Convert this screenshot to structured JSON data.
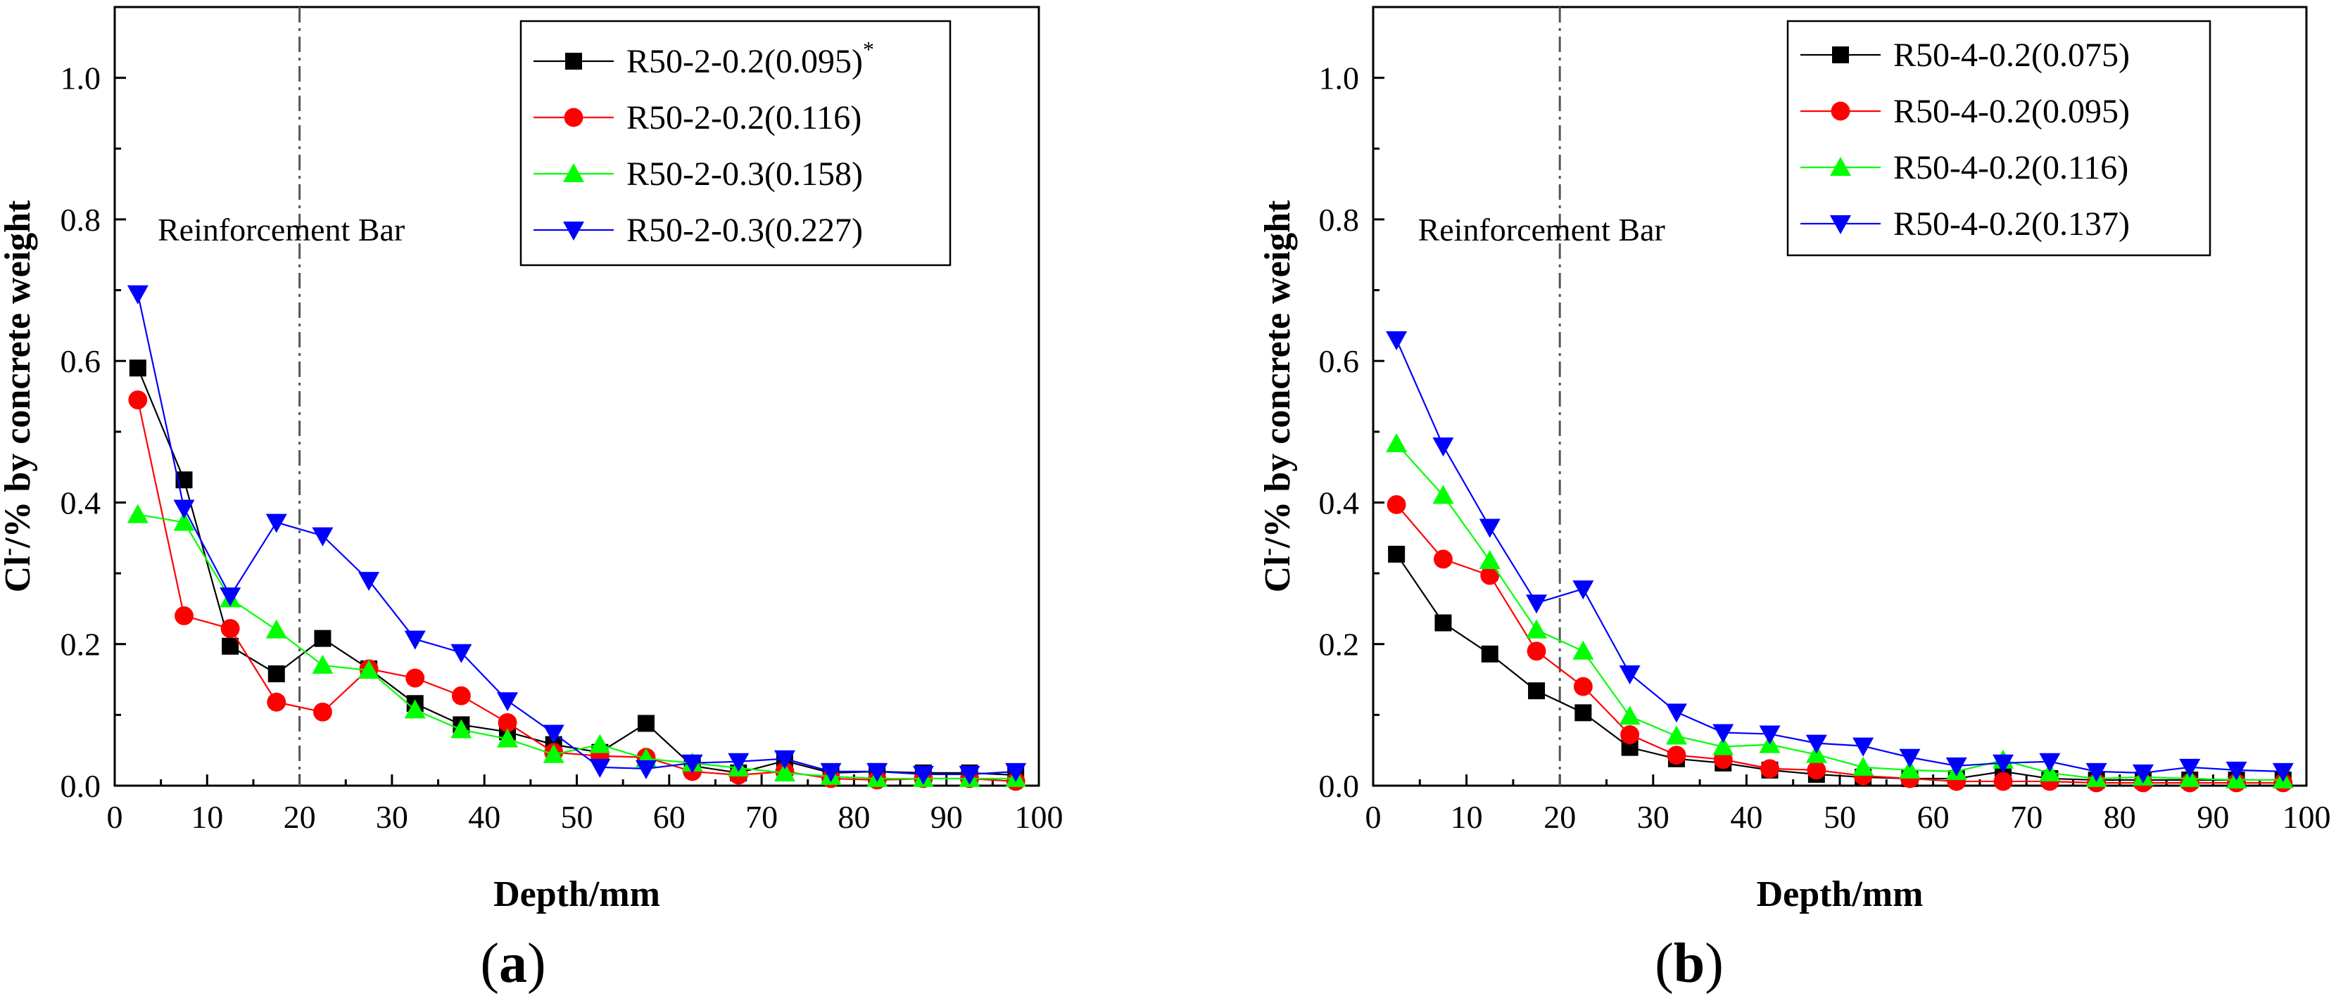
{
  "chart_data": [
    {
      "type": "line",
      "panel_label": "a",
      "xlabel": "Depth/mm",
      "ylabel_main": "Cl",
      "ylabel_sup": "-",
      "ylabel_rest": "/% by concrete weight",
      "xlim": [
        0,
        100
      ],
      "ylim": [
        0,
        1.1
      ],
      "xticks": [
        "0",
        "10",
        "20",
        "30",
        "40",
        "50",
        "60",
        "70",
        "80",
        "90",
        "100"
      ],
      "yticks": [
        "0.0",
        "0.2",
        "0.4",
        "0.6",
        "0.8",
        "1.0"
      ],
      "annotation": {
        "text": "Reinforcement Bar",
        "x": 20
      },
      "legend_position": "top-right",
      "x": [
        2.5,
        7.5,
        12.5,
        17.5,
        22.5,
        27.5,
        32.5,
        37.5,
        42.5,
        47.5,
        52.5,
        57.5,
        62.5,
        67.5,
        72.5,
        77.5,
        82.5,
        87.5,
        92.5,
        97.5
      ],
      "series": [
        {
          "name": "R50-2-0.2(0.095)",
          "superscript": "*",
          "color": "#000000",
          "marker": "square",
          "values": [
            0.59,
            0.432,
            0.197,
            0.158,
            0.208,
            0.165,
            0.116,
            0.086,
            0.076,
            0.058,
            0.047,
            0.088,
            0.028,
            0.018,
            0.035,
            0.018,
            0.02,
            0.018,
            0.018,
            0.015
          ]
        },
        {
          "name": "R50-2-0.2(0.116)",
          "color": "#ff0000",
          "marker": "circle",
          "values": [
            0.545,
            0.24,
            0.222,
            0.118,
            0.104,
            0.165,
            0.152,
            0.127,
            0.089,
            0.047,
            0.042,
            0.04,
            0.02,
            0.015,
            0.02,
            0.01,
            0.008,
            0.01,
            0.01,
            0.006
          ]
        },
        {
          "name": "R50-2-0.3(0.158)",
          "color": "#00ff00",
          "marker": "triangle-up",
          "values": [
            0.383,
            0.372,
            0.264,
            0.22,
            0.17,
            0.163,
            0.107,
            0.079,
            0.066,
            0.044,
            0.058,
            0.038,
            0.032,
            0.025,
            0.018,
            0.013,
            0.01,
            0.01,
            0.01,
            0.01
          ]
        },
        {
          "name": "R50-2-0.3(0.227)",
          "color": "#0000ff",
          "marker": "triangle-down",
          "values": [
            0.695,
            0.392,
            0.268,
            0.372,
            0.353,
            0.29,
            0.207,
            0.188,
            0.12,
            0.074,
            0.026,
            0.024,
            0.032,
            0.034,
            0.038,
            0.02,
            0.02,
            0.016,
            0.016,
            0.02
          ]
        }
      ]
    },
    {
      "type": "line",
      "panel_label": "b",
      "xlabel": "Depth/mm",
      "ylabel_main": "Cl",
      "ylabel_sup": "-",
      "ylabel_rest": "/% by concrete weight",
      "xlim": [
        0,
        100
      ],
      "ylim": [
        0,
        1.1
      ],
      "xticks": [
        "0",
        "10",
        "20",
        "30",
        "40",
        "50",
        "60",
        "70",
        "80",
        "90",
        "100"
      ],
      "yticks": [
        "0.0",
        "0.2",
        "0.4",
        "0.6",
        "0.8",
        "1.0"
      ],
      "annotation": {
        "text": "Reinforcement Bar",
        "x": 20
      },
      "legend_position": "top-right",
      "x": [
        2.5,
        7.5,
        12.5,
        17.5,
        22.5,
        27.5,
        32.5,
        37.5,
        42.5,
        47.5,
        52.5,
        57.5,
        62.5,
        67.5,
        72.5,
        77.5,
        82.5,
        87.5,
        92.5,
        97.5
      ],
      "series": [
        {
          "name": "R50-4-0.2(0.075)",
          "color": "#000000",
          "marker": "square",
          "values": [
            0.327,
            0.23,
            0.186,
            0.134,
            0.103,
            0.054,
            0.038,
            0.032,
            0.022,
            0.016,
            0.012,
            0.01,
            0.01,
            0.02,
            0.01,
            0.008,
            0.008,
            0.008,
            0.008,
            0.008
          ]
        },
        {
          "name": "R50-4-0.2(0.095)",
          "color": "#ff0000",
          "marker": "circle",
          "values": [
            0.397,
            0.32,
            0.297,
            0.19,
            0.14,
            0.072,
            0.043,
            0.037,
            0.024,
            0.022,
            0.014,
            0.01,
            0.006,
            0.006,
            0.006,
            0.004,
            0.004,
            0.004,
            0.004,
            0.004
          ]
        },
        {
          "name": "R50-4-0.2(0.116)",
          "color": "#00ff00",
          "marker": "triangle-up",
          "values": [
            0.483,
            0.41,
            0.318,
            0.22,
            0.19,
            0.098,
            0.07,
            0.055,
            0.058,
            0.044,
            0.026,
            0.022,
            0.02,
            0.036,
            0.018,
            0.01,
            0.012,
            0.01,
            0.008,
            0.008
          ]
        },
        {
          "name": "R50-4-0.2(0.137)",
          "color": "#0000ff",
          "marker": "triangle-down",
          "values": [
            0.63,
            0.48,
            0.365,
            0.258,
            0.278,
            0.158,
            0.104,
            0.075,
            0.073,
            0.06,
            0.056,
            0.04,
            0.028,
            0.032,
            0.034,
            0.02,
            0.018,
            0.026,
            0.022,
            0.02
          ]
        }
      ]
    }
  ]
}
